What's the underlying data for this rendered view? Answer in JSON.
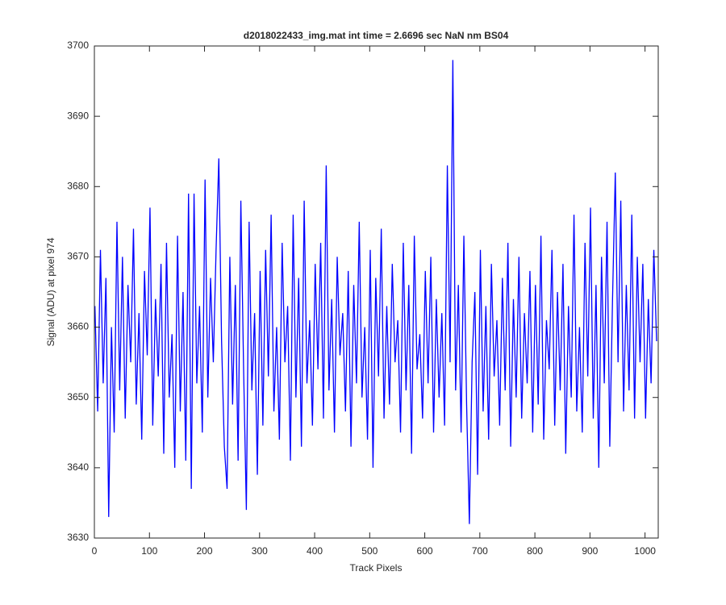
{
  "chart_data": {
    "type": "line",
    "title": "d2018022433_img.mat int time = 2.6696 sec  NaN nm BS04",
    "x_label": "Track Pixels",
    "y_label": "Signal (ADU) at pixel 974",
    "color": "#0000ff",
    "xlim": [
      0,
      1024
    ],
    "ylim": [
      3630,
      3700
    ],
    "xticks": [
      0,
      100,
      200,
      300,
      400,
      500,
      600,
      700,
      800,
      900,
      1000
    ],
    "yticks": [
      3630,
      3640,
      3650,
      3660,
      3670,
      3680,
      3690,
      3700
    ],
    "grid": false,
    "x": [
      1,
      6,
      11,
      16,
      21,
      26,
      31,
      36,
      41,
      46,
      51,
      56,
      61,
      66,
      71,
      76,
      81,
      86,
      91,
      96,
      101,
      106,
      111,
      116,
      121,
      126,
      131,
      136,
      141,
      146,
      151,
      156,
      161,
      166,
      171,
      176,
      181,
      186,
      191,
      196,
      201,
      206,
      211,
      216,
      221,
      226,
      231,
      236,
      241,
      246,
      251,
      256,
      261,
      266,
      271,
      276,
      281,
      286,
      291,
      296,
      301,
      306,
      311,
      316,
      321,
      326,
      331,
      336,
      341,
      346,
      351,
      356,
      361,
      366,
      371,
      376,
      381,
      386,
      391,
      396,
      401,
      406,
      411,
      416,
      421,
      426,
      431,
      436,
      441,
      446,
      451,
      456,
      461,
      466,
      471,
      476,
      481,
      486,
      491,
      496,
      501,
      506,
      511,
      516,
      521,
      526,
      531,
      536,
      541,
      546,
      551,
      556,
      561,
      566,
      571,
      576,
      581,
      586,
      591,
      596,
      601,
      606,
      611,
      616,
      621,
      626,
      631,
      636,
      641,
      646,
      651,
      656,
      661,
      666,
      671,
      676,
      681,
      686,
      691,
      696,
      701,
      706,
      711,
      716,
      721,
      726,
      731,
      736,
      741,
      746,
      751,
      756,
      761,
      766,
      771,
      776,
      781,
      786,
      791,
      796,
      801,
      806,
      811,
      816,
      821,
      826,
      831,
      836,
      841,
      846,
      851,
      856,
      861,
      866,
      871,
      876,
      881,
      886,
      891,
      896,
      901,
      906,
      911,
      916,
      921,
      926,
      931,
      936,
      941,
      946,
      951,
      956,
      961,
      966,
      971,
      976,
      981,
      986,
      991,
      996,
      1001,
      1006,
      1011,
      1016,
      1021
    ],
    "values": [
      3663,
      3648,
      3671,
      3652,
      3667,
      3633,
      3660,
      3645,
      3675,
      3651,
      3670,
      3647,
      3666,
      3655,
      3674,
      3649,
      3662,
      3644,
      3668,
      3656,
      3677,
      3646,
      3664,
      3653,
      3669,
      3642,
      3672,
      3650,
      3659,
      3640,
      3673,
      3648,
      3665,
      3641,
      3679,
      3637,
      3679,
      3652,
      3663,
      3645,
      3681,
      3650,
      3667,
      3655,
      3671,
      3684,
      3658,
      3643,
      3637,
      3670,
      3649,
      3666,
      3641,
      3678,
      3654,
      3634,
      3675,
      3651,
      3662,
      3639,
      3668,
      3646,
      3671,
      3653,
      3676,
      3648,
      3660,
      3644,
      3672,
      3655,
      3663,
      3641,
      3676,
      3650,
      3667,
      3643,
      3678,
      3652,
      3661,
      3646,
      3669,
      3654,
      3672,
      3647,
      3683,
      3651,
      3664,
      3645,
      3670,
      3656,
      3662,
      3648,
      3668,
      3643,
      3666,
      3652,
      3675,
      3650,
      3660,
      3644,
      3671,
      3640,
      3667,
      3653,
      3674,
      3647,
      3663,
      3649,
      3669,
      3655,
      3661,
      3645,
      3672,
      3651,
      3666,
      3642,
      3673,
      3654,
      3659,
      3647,
      3668,
      3652,
      3670,
      3645,
      3664,
      3650,
      3662,
      3646,
      3683,
      3655,
      3698,
      3651,
      3666,
      3645,
      3673,
      3649,
      3632,
      3655,
      3665,
      3639,
      3671,
      3648,
      3663,
      3644,
      3669,
      3653,
      3661,
      3646,
      3667,
      3651,
      3672,
      3643,
      3664,
      3650,
      3670,
      3647,
      3662,
      3652,
      3668,
      3645,
      3666,
      3649,
      3673,
      3644,
      3661,
      3654,
      3671,
      3646,
      3665,
      3651,
      3669,
      3642,
      3663,
      3650,
      3676,
      3648,
      3660,
      3645,
      3672,
      3653,
      3677,
      3647,
      3666,
      3640,
      3670,
      3652,
      3675,
      3643,
      3664,
      3682,
      3655,
      3678,
      3648,
      3666,
      3651,
      3676,
      3647,
      3670,
      3655,
      3669,
      3647,
      3664,
      3652,
      3671,
      3658
    ]
  }
}
